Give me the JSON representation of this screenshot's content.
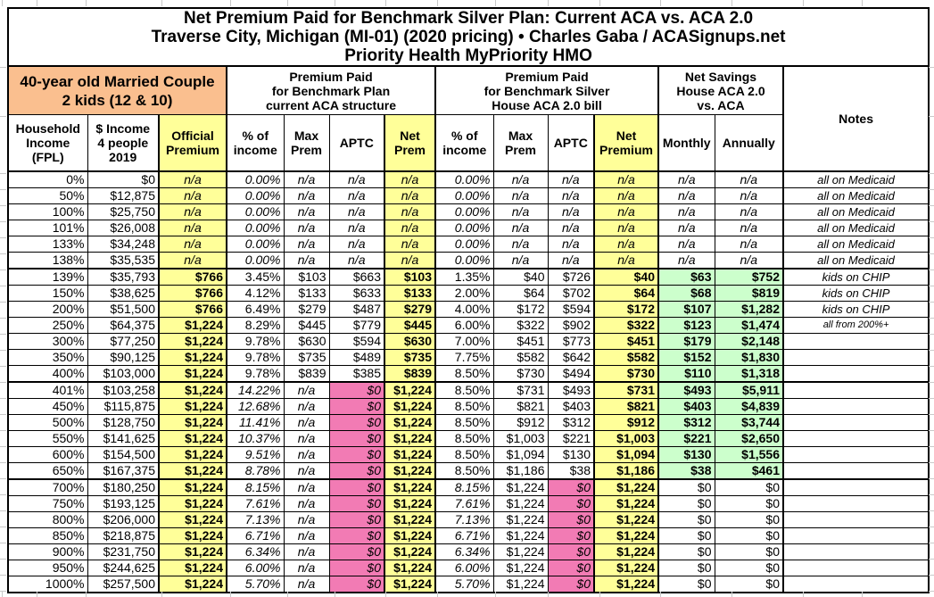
{
  "title": {
    "line1": "Net Premium Paid for Benchmark Silver Plan: Current ACA vs. ACA 2.0",
    "line2": "Traverse City, Michigan (MI-01) (2020 pricing) • Charles Gaba / ACASignups.net",
    "line3": "Priority Health MyPriority HMO"
  },
  "groups": {
    "household": "40-year old Married Couple\n2 kids (12 & 10)",
    "current_aca": "Premium Paid\nfor Benchmark Plan\ncurrent ACA structure",
    "aca2": "Premium Paid\nfor Benchmark Silver\nHouse ACA 2.0 bill",
    "savings": "Net Savings\nHouse ACA 2.0\nvs. ACA",
    "notes": "Notes"
  },
  "table": {
    "headers": [
      "Household\nIncome\n(FPL)",
      "$ Income\n4 people\n2019",
      "Official\nPremium",
      "% of\nincome",
      "Max\nPrem",
      "APTC",
      "Net\nPrem",
      "% of\nincome",
      "Max\nPrem",
      "APTC",
      "Net\nPremium",
      "Monthly",
      "Annually"
    ],
    "rows": [
      {
        "group": "medicaid",
        "cells": [
          "0%",
          "$0",
          "n/a",
          "0.00%",
          "n/a",
          "n/a",
          "n/a",
          "0.00%",
          "n/a",
          "n/a",
          "n/a",
          "n/a",
          "n/a",
          "all on Medicaid"
        ]
      },
      {
        "group": "medicaid",
        "cells": [
          "50%",
          "$12,875",
          "n/a",
          "0.00%",
          "n/a",
          "n/a",
          "n/a",
          "0.00%",
          "n/a",
          "n/a",
          "n/a",
          "n/a",
          "n/a",
          "all on Medicaid"
        ]
      },
      {
        "group": "medicaid",
        "cells": [
          "100%",
          "$25,750",
          "n/a",
          "0.00%",
          "n/a",
          "n/a",
          "n/a",
          "0.00%",
          "n/a",
          "n/a",
          "n/a",
          "n/a",
          "n/a",
          "all on Medicaid"
        ]
      },
      {
        "group": "medicaid",
        "cells": [
          "101%",
          "$26,008",
          "n/a",
          "0.00%",
          "n/a",
          "n/a",
          "n/a",
          "0.00%",
          "n/a",
          "n/a",
          "n/a",
          "n/a",
          "n/a",
          "all on Medicaid"
        ]
      },
      {
        "group": "medicaid",
        "cells": [
          "133%",
          "$34,248",
          "n/a",
          "0.00%",
          "n/a",
          "n/a",
          "n/a",
          "0.00%",
          "n/a",
          "n/a",
          "n/a",
          "n/a",
          "n/a",
          "all on Medicaid"
        ]
      },
      {
        "group": "medicaid",
        "cells": [
          "138%",
          "$35,535",
          "n/a",
          "0.00%",
          "n/a",
          "n/a",
          "n/a",
          "0.00%",
          "n/a",
          "n/a",
          "n/a",
          "n/a",
          "n/a",
          "all on Medicaid"
        ]
      },
      {
        "group": "subsid",
        "cells": [
          "139%",
          "$35,793",
          "$766",
          "3.45%",
          "$103",
          "$663",
          "$103",
          "1.35%",
          "$40",
          "$726",
          "$40",
          "$63",
          "$752",
          "kids on CHIP"
        ]
      },
      {
        "group": "subsid",
        "cells": [
          "150%",
          "$38,625",
          "$766",
          "4.12%",
          "$133",
          "$633",
          "$133",
          "2.00%",
          "$64",
          "$702",
          "$64",
          "$68",
          "$819",
          "kids on CHIP"
        ]
      },
      {
        "group": "subsid",
        "cells": [
          "200%",
          "$51,500",
          "$766",
          "6.49%",
          "$279",
          "$487",
          "$279",
          "4.00%",
          "$172",
          "$594",
          "$172",
          "$107",
          "$1,282",
          "kids on CHIP"
        ]
      },
      {
        "group": "subsid",
        "note_small": true,
        "cells": [
          "250%",
          "$64,375",
          "$1,224",
          "8.29%",
          "$445",
          "$779",
          "$445",
          "6.00%",
          "$322",
          "$902",
          "$322",
          "$123",
          "$1,474",
          "all from 200%+"
        ]
      },
      {
        "group": "subsid",
        "cells": [
          "300%",
          "$77,250",
          "$1,224",
          "9.78%",
          "$630",
          "$594",
          "$630",
          "7.00%",
          "$451",
          "$773",
          "$451",
          "$179",
          "$2,148",
          ""
        ]
      },
      {
        "group": "subsid",
        "cells": [
          "350%",
          "$90,125",
          "$1,224",
          "9.78%",
          "$735",
          "$489",
          "$735",
          "7.75%",
          "$582",
          "$642",
          "$582",
          "$152",
          "$1,830",
          ""
        ]
      },
      {
        "group": "subsid",
        "cells": [
          "400%",
          "$103,000",
          "$1,224",
          "9.78%",
          "$839",
          "$385",
          "$839",
          "8.50%",
          "$730",
          "$494",
          "$730",
          "$110",
          "$1,318",
          ""
        ]
      },
      {
        "group": "cliff",
        "cells": [
          "401%",
          "$103,258",
          "$1,224",
          "14.22%",
          "n/a",
          "$0",
          "$1,224",
          "8.50%",
          "$731",
          "$493",
          "$731",
          "$493",
          "$5,911",
          ""
        ]
      },
      {
        "group": "cliff",
        "cells": [
          "450%",
          "$115,875",
          "$1,224",
          "12.68%",
          "n/a",
          "$0",
          "$1,224",
          "8.50%",
          "$821",
          "$403",
          "$821",
          "$403",
          "$4,839",
          ""
        ]
      },
      {
        "group": "cliff",
        "cells": [
          "500%",
          "$128,750",
          "$1,224",
          "11.41%",
          "n/a",
          "$0",
          "$1,224",
          "8.50%",
          "$912",
          "$312",
          "$912",
          "$312",
          "$3,744",
          ""
        ]
      },
      {
        "group": "cliff",
        "cells": [
          "550%",
          "$141,625",
          "$1,224",
          "10.37%",
          "n/a",
          "$0",
          "$1,224",
          "8.50%",
          "$1,003",
          "$221",
          "$1,003",
          "$221",
          "$2,650",
          ""
        ]
      },
      {
        "group": "cliff",
        "cells": [
          "600%",
          "$154,500",
          "$1,224",
          "9.51%",
          "n/a",
          "$0",
          "$1,224",
          "8.50%",
          "$1,094",
          "$130",
          "$1,094",
          "$130",
          "$1,556",
          ""
        ]
      },
      {
        "group": "cliff",
        "cells": [
          "650%",
          "$167,375",
          "$1,224",
          "8.78%",
          "n/a",
          "$0",
          "$1,224",
          "8.50%",
          "$1,186",
          "$38",
          "$1,186",
          "$38",
          "$461",
          ""
        ]
      },
      {
        "group": "over",
        "cells": [
          "700%",
          "$180,250",
          "$1,224",
          "8.15%",
          "n/a",
          "$0",
          "$1,224",
          "8.15%",
          "$1,224",
          "$0",
          "$1,224",
          "$0",
          "$0",
          ""
        ]
      },
      {
        "group": "over",
        "cells": [
          "750%",
          "$193,125",
          "$1,224",
          "7.61%",
          "n/a",
          "$0",
          "$1,224",
          "7.61%",
          "$1,224",
          "$0",
          "$1,224",
          "$0",
          "$0",
          ""
        ]
      },
      {
        "group": "over",
        "cells": [
          "800%",
          "$206,000",
          "$1,224",
          "7.13%",
          "n/a",
          "$0",
          "$1,224",
          "7.13%",
          "$1,224",
          "$0",
          "$1,224",
          "$0",
          "$0",
          ""
        ]
      },
      {
        "group": "over",
        "cells": [
          "850%",
          "$218,875",
          "$1,224",
          "6.71%",
          "n/a",
          "$0",
          "$1,224",
          "6.71%",
          "$1,224",
          "$0",
          "$1,224",
          "$0",
          "$0",
          ""
        ]
      },
      {
        "group": "over",
        "cells": [
          "900%",
          "$231,750",
          "$1,224",
          "6.34%",
          "n/a",
          "$0",
          "$1,224",
          "6.34%",
          "$1,224",
          "$0",
          "$1,224",
          "$0",
          "$0",
          ""
        ]
      },
      {
        "group": "over",
        "cells": [
          "950%",
          "$244,625",
          "$1,224",
          "6.00%",
          "n/a",
          "$0",
          "$1,224",
          "6.00%",
          "$1,224",
          "$0",
          "$1,224",
          "$0",
          "$0",
          ""
        ]
      },
      {
        "group": "over",
        "cells": [
          "1000%",
          "$257,500",
          "$1,224",
          "5.70%",
          "n/a",
          "$0",
          "$1,224",
          "5.70%",
          "$1,224",
          "$0",
          "$1,224",
          "$0",
          "$0",
          ""
        ]
      }
    ]
  },
  "colors": {
    "header_orange": "#FABF8F",
    "highlight_yellow": "#FFFF99",
    "zero_pink": "#F27BB4",
    "savings_green": "#CCFFCC",
    "gridline_gray": "#C9C9C9",
    "border_black": "#000000"
  }
}
